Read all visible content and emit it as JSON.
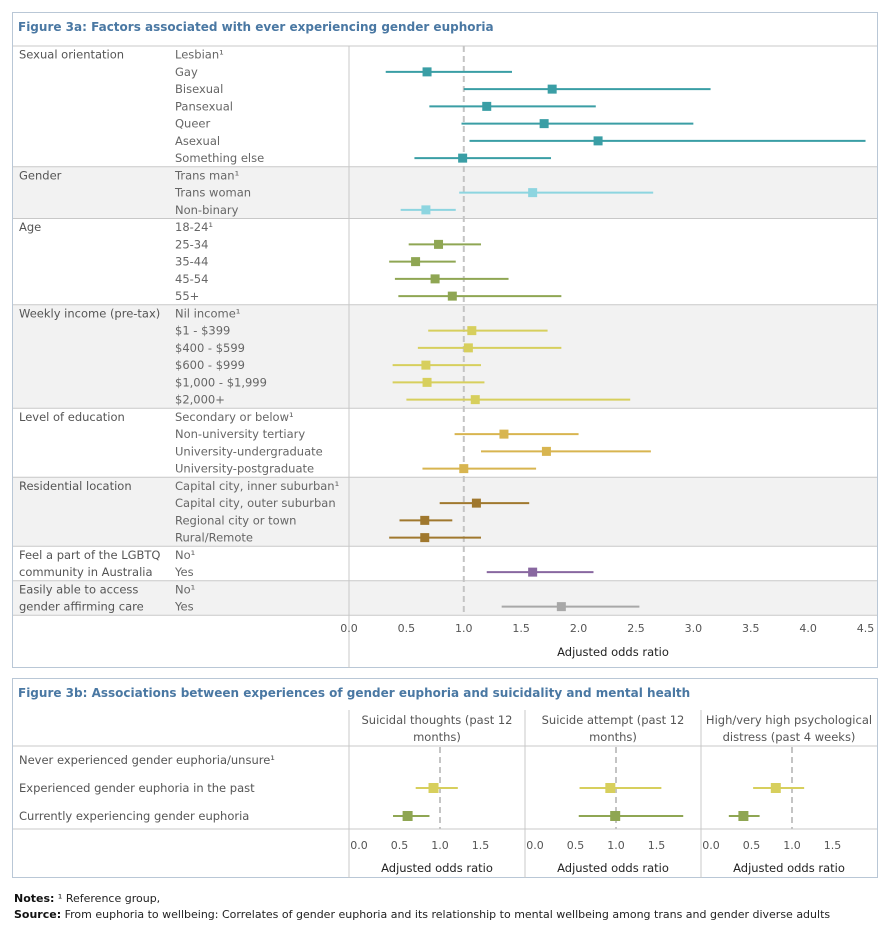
{
  "chart_data": [
    {
      "type": "forest",
      "title": "Figure 3a: Factors associated with ever experiencing gender euphoria",
      "xlabel": "Adjusted odds ratio",
      "xlim": [
        0,
        4.6
      ],
      "x_ticks": [
        0.0,
        0.5,
        1.0,
        1.5,
        2.0,
        2.5,
        3.0,
        3.5,
        4.0,
        4.5
      ],
      "x_tick_labels": [
        "0.0",
        "0.5",
        "1.0",
        "1.5",
        "2.0",
        "2.5",
        "3.0",
        "3.5",
        "4.0",
        "4.5"
      ],
      "reference_line": 1.0,
      "groups": [
        {
          "name": "Sexual orientation",
          "color": "#3a9ea5",
          "rows": [
            {
              "label": "Lesbian¹",
              "or": null,
              "lo": null,
              "hi": null
            },
            {
              "label": "Gay",
              "or": 0.68,
              "lo": 0.32,
              "hi": 1.42
            },
            {
              "label": "Bisexual",
              "or": 1.77,
              "lo": 1.0,
              "hi": 3.15
            },
            {
              "label": "Pansexual",
              "or": 1.2,
              "lo": 0.7,
              "hi": 2.15
            },
            {
              "label": "Queer",
              "or": 1.7,
              "lo": 0.98,
              "hi": 3.0
            },
            {
              "label": "Asexual",
              "or": 2.17,
              "lo": 1.05,
              "hi": 4.5
            },
            {
              "label": "Something else",
              "or": 0.99,
              "lo": 0.57,
              "hi": 1.76
            }
          ]
        },
        {
          "name": "Gender",
          "color": "#8dd5e0",
          "rows": [
            {
              "label": "Trans man¹",
              "or": null,
              "lo": null,
              "hi": null
            },
            {
              "label": "Trans woman",
              "or": 1.6,
              "lo": 0.96,
              "hi": 2.65
            },
            {
              "label": "Non-binary",
              "or": 0.67,
              "lo": 0.45,
              "hi": 0.93
            }
          ]
        },
        {
          "name": "Age",
          "color": "#8fa653",
          "rows": [
            {
              "label": "18-24¹",
              "or": null,
              "lo": null,
              "hi": null
            },
            {
              "label": "25-34",
              "or": 0.78,
              "lo": 0.52,
              "hi": 1.15
            },
            {
              "label": "35-44",
              "or": 0.58,
              "lo": 0.35,
              "hi": 0.93
            },
            {
              "label": "45-54",
              "or": 0.75,
              "lo": 0.4,
              "hi": 1.39
            },
            {
              "label": "55+",
              "or": 0.9,
              "lo": 0.43,
              "hi": 1.85
            }
          ]
        },
        {
          "name": "Weekly income (pre-tax)",
          "color": "#d7cf5d",
          "rows": [
            {
              "label": "Nil income¹",
              "or": null,
              "lo": null,
              "hi": null
            },
            {
              "label": "$1 - $399",
              "or": 1.07,
              "lo": 0.69,
              "hi": 1.73
            },
            {
              "label": "$400 - $599",
              "or": 1.04,
              "lo": 0.6,
              "hi": 1.85
            },
            {
              "label": "$600 - $999",
              "or": 0.67,
              "lo": 0.38,
              "hi": 1.15
            },
            {
              "label": "$1,000 - $1,999",
              "or": 0.68,
              "lo": 0.38,
              "hi": 1.18
            },
            {
              "label": "$2,000+",
              "or": 1.1,
              "lo": 0.5,
              "hi": 2.45
            }
          ]
        },
        {
          "name": "Level of education",
          "color": "#d8b550",
          "rows": [
            {
              "label": "Secondary or below¹",
              "or": null,
              "lo": null,
              "hi": null
            },
            {
              "label": "Non-university tertiary",
              "or": 1.35,
              "lo": 0.92,
              "hi": 2.0
            },
            {
              "label": "University-undergraduate",
              "or": 1.72,
              "lo": 1.15,
              "hi": 2.63
            },
            {
              "label": "University-postgraduate",
              "or": 1.0,
              "lo": 0.64,
              "hi": 1.63
            }
          ]
        },
        {
          "name": "Residential location",
          "color": "#a0782e",
          "rows": [
            {
              "label": "Capital city, inner suburban¹",
              "or": null,
              "lo": null,
              "hi": null
            },
            {
              "label": "Capital city, outer suburban",
              "or": 1.11,
              "lo": 0.79,
              "hi": 1.57
            },
            {
              "label": "Regional city or town",
              "or": 0.66,
              "lo": 0.44,
              "hi": 0.9
            },
            {
              "label": "Rural/Remote",
              "or": 0.66,
              "lo": 0.35,
              "hi": 1.15
            }
          ]
        },
        {
          "name": "Feel a part of the LGBTQ community in Australia",
          "name_lines": [
            "Feel a part of the LGBTQ",
            "community in Australia"
          ],
          "color": "#8867a0",
          "rows": [
            {
              "label": "No¹",
              "or": null,
              "lo": null,
              "hi": null
            },
            {
              "label": "Yes",
              "or": 1.6,
              "lo": 1.2,
              "hi": 2.13
            }
          ]
        },
        {
          "name": "Easily able to access gender affirming care",
          "name_lines": [
            "Easily able to access",
            "gender affirming care"
          ],
          "color": "#a8a8a8",
          "rows": [
            {
              "label": "No¹",
              "or": null,
              "lo": null,
              "hi": null
            },
            {
              "label": "Yes",
              "or": 1.85,
              "lo": 1.33,
              "hi": 2.53
            }
          ]
        }
      ]
    },
    {
      "type": "forest",
      "title": "Figure 3b: Associations between experiences of gender euphoria and suicidality and mental health",
      "xlabel": "Adjusted odds ratio",
      "xlim": [
        0,
        2.0
      ],
      "x_ticks": [
        0.0,
        0.5,
        1.0,
        1.5
      ],
      "x_tick_labels": [
        "0.0",
        "0.5",
        "1.0",
        "1.5"
      ],
      "reference_line": 1.0,
      "rows": [
        "Never experienced gender euphoria/unsure¹",
        "Experienced gender euphoria in the past",
        "Currently experiencing gender euphoria"
      ],
      "row_colors": [
        null,
        "#d7cf5d",
        "#8fa653"
      ],
      "panels": [
        {
          "title_lines": [
            "Suicidal thoughts (past 12",
            "months)"
          ],
          "values": [
            null,
            {
              "or": 0.92,
              "lo": 0.7,
              "hi": 1.22
            },
            {
              "or": 0.6,
              "lo": 0.42,
              "hi": 0.87
            }
          ]
        },
        {
          "title_lines": [
            "Suicide attempt (past 12",
            "months)"
          ],
          "values": [
            null,
            {
              "or": 0.93,
              "lo": 0.55,
              "hi": 1.56
            },
            {
              "or": 0.99,
              "lo": 0.54,
              "hi": 1.83
            }
          ]
        },
        {
          "title_lines": [
            "High/very high psychological",
            "distress (past 4 weeks)"
          ],
          "values": [
            null,
            {
              "or": 0.8,
              "lo": 0.52,
              "hi": 1.15
            },
            {
              "or": 0.4,
              "lo": 0.22,
              "hi": 0.6
            }
          ]
        }
      ]
    }
  ],
  "notes": {
    "notes_label": "Notes:",
    "notes_text": " ¹ Reference group,",
    "source_label": "Source:",
    "source_text": "  From euphoria to wellbeing: Correlates of gender euphoria and its relationship to mental wellbeing among trans and gender diverse adults"
  }
}
